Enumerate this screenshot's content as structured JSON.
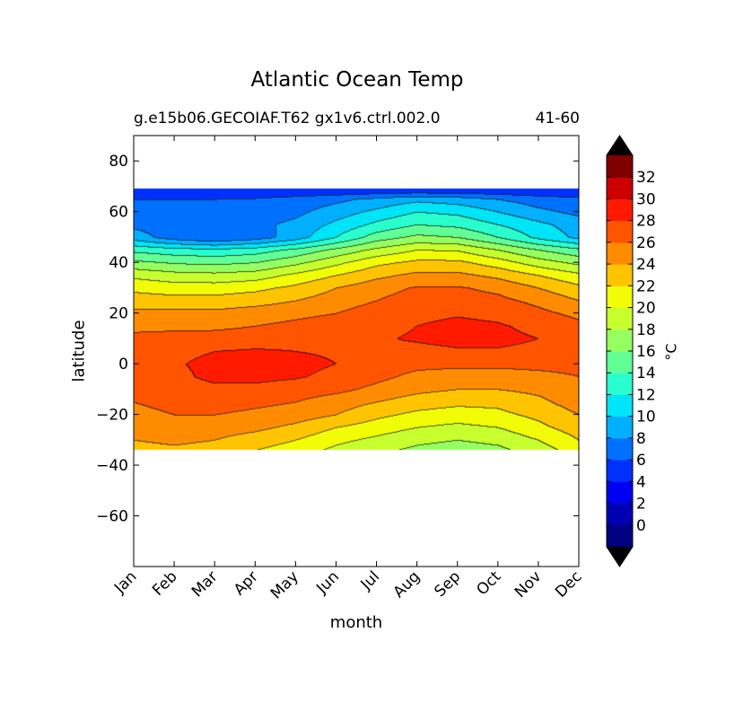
{
  "title": "Atlantic Ocean Temp",
  "subtitle": "g.e15b06.GECOIAF.T62 gx1v6.ctrl.002.0",
  "period": "41-60",
  "colorbar": {
    "label": "°C",
    "tick_labels": [
      "0",
      "2",
      "4",
      "6",
      "8",
      "10",
      "12",
      "14",
      "16",
      "18",
      "20",
      "22",
      "24",
      "26",
      "28",
      "30",
      "32"
    ],
    "colors": [
      "#000080",
      "#0000b2",
      "#0000f1",
      "#0030ff",
      "#0070ff",
      "#00b0ff",
      "#00e4f8",
      "#29ffce",
      "#61ff96",
      "#96ff61",
      "#c8ff2e",
      "#f1fc06",
      "#ffc400",
      "#ff8c00",
      "#ff5400",
      "#ff1a00",
      "#cc0000",
      "#800000"
    ],
    "extend": "both"
  },
  "chart_data": {
    "type": "contourf",
    "xlabel": "month",
    "ylabel": "latitude",
    "x_categories": [
      "Jan",
      "Feb",
      "Mar",
      "Apr",
      "May",
      "Jun",
      "Jul",
      "Aug",
      "Sep",
      "Oct",
      "Nov",
      "Dec"
    ],
    "y_ticks": [
      "80",
      "60",
      "40",
      "20",
      "0",
      "−20",
      "−40",
      "−60"
    ],
    "y_tick_values": [
      80,
      60,
      40,
      20,
      0,
      -20,
      -40,
      -60
    ],
    "ylim": [
      -80,
      90
    ],
    "xlim": [
      0,
      11
    ],
    "data_lat_range": [
      -34,
      69
    ],
    "levels": [
      -2,
      0,
      2,
      4,
      6,
      8,
      10,
      12,
      14,
      16,
      18,
      20,
      22,
      24,
      26,
      28,
      30,
      32,
      34
    ],
    "latitudes": [
      -34,
      -30,
      -25,
      -20,
      -15,
      -10,
      -5,
      0,
      5,
      10,
      15,
      20,
      25,
      30,
      35,
      40,
      45,
      50,
      55,
      60,
      65,
      69
    ],
    "months": [
      "Jan",
      "Feb",
      "Mar",
      "Apr",
      "May",
      "Jun",
      "Jul",
      "Aug",
      "Sep",
      "Oct",
      "Nov",
      "Dec"
    ],
    "temperature_grid": [
      [
        23.0,
        23.5,
        23.0,
        22.0,
        21.0,
        19.5,
        18.5,
        17.5,
        17.0,
        17.5,
        19.0,
        21.0
      ],
      [
        24.0,
        24.5,
        24.0,
        23.0,
        22.0,
        20.5,
        19.5,
        18.5,
        18.0,
        18.5,
        20.0,
        22.0
      ],
      [
        25.0,
        25.5,
        25.0,
        24.5,
        23.5,
        22.0,
        21.0,
        20.0,
        19.5,
        20.0,
        21.5,
        23.0
      ],
      [
        25.5,
        26.0,
        26.0,
        25.5,
        25.0,
        24.0,
        22.5,
        21.5,
        21.0,
        21.5,
        22.5,
        24.0
      ],
      [
        26.0,
        26.5,
        27.0,
        26.5,
        26.0,
        25.0,
        24.0,
        23.0,
        22.5,
        22.5,
        23.5,
        25.0
      ],
      [
        26.5,
        27.0,
        27.5,
        27.5,
        27.0,
        26.5,
        25.5,
        24.5,
        24.0,
        24.0,
        24.5,
        25.5
      ],
      [
        27.0,
        27.5,
        28.5,
        28.5,
        28.2,
        27.5,
        26.5,
        25.5,
        25.0,
        25.0,
        25.5,
        26.0
      ],
      [
        27.0,
        27.8,
        28.5,
        28.5,
        28.5,
        28.0,
        27.0,
        26.5,
        26.5,
        26.5,
        26.5,
        26.5
      ],
      [
        27.0,
        27.5,
        28.0,
        28.2,
        28.0,
        27.8,
        27.5,
        27.5,
        27.8,
        27.8,
        27.5,
        27.0
      ],
      [
        26.5,
        26.8,
        27.0,
        27.2,
        27.5,
        27.5,
        27.8,
        28.2,
        28.5,
        28.5,
        28.0,
        27.5
      ],
      [
        25.5,
        25.5,
        25.5,
        26.0,
        26.5,
        27.0,
        27.5,
        28.0,
        28.5,
        28.2,
        27.5,
        26.5
      ],
      [
        24.5,
        24.5,
        24.5,
        25.0,
        25.5,
        26.0,
        27.0,
        27.5,
        27.8,
        27.5,
        26.5,
        25.5
      ],
      [
        23.0,
        22.8,
        22.8,
        23.2,
        24.0,
        25.0,
        26.0,
        27.0,
        27.0,
        26.5,
        25.5,
        24.0
      ],
      [
        21.5,
        21.0,
        21.0,
        21.5,
        22.5,
        24.0,
        25.2,
        26.2,
        26.2,
        25.5,
        24.0,
        22.5
      ],
      [
        19.5,
        18.8,
        18.6,
        19.0,
        20.5,
        22.0,
        23.5,
        24.5,
        24.5,
        23.5,
        22.0,
        20.5
      ],
      [
        16.5,
        15.8,
        15.5,
        16.0,
        17.5,
        19.5,
        21.5,
        22.5,
        22.5,
        21.0,
        19.0,
        17.5
      ],
      [
        13.5,
        12.8,
        12.5,
        13.0,
        14.5,
        16.5,
        18.5,
        20.0,
        19.8,
        18.0,
        16.0,
        14.5
      ],
      [
        9.0,
        7.0,
        6.0,
        7.0,
        9.0,
        12.0,
        15.0,
        16.5,
        16.0,
        14.0,
        11.5,
        9.5
      ],
      [
        7.5,
        7.0,
        7.0,
        7.5,
        8.5,
        10.5,
        12.5,
        14.0,
        13.5,
        12.0,
        10.5,
        9.0
      ],
      [
        7.0,
        6.5,
        6.5,
        6.8,
        7.5,
        9.0,
        10.5,
        12.0,
        11.5,
        10.0,
        8.5,
        7.5
      ],
      [
        6.0,
        6.0,
        6.0,
        6.2,
        6.8,
        7.5,
        8.5,
        9.5,
        9.0,
        8.0,
        7.0,
        6.5
      ],
      [
        4.0,
        4.0,
        4.0,
        4.0,
        4.0,
        4.0,
        4.0,
        4.0,
        4.0,
        4.0,
        4.0,
        4.0
      ]
    ]
  }
}
